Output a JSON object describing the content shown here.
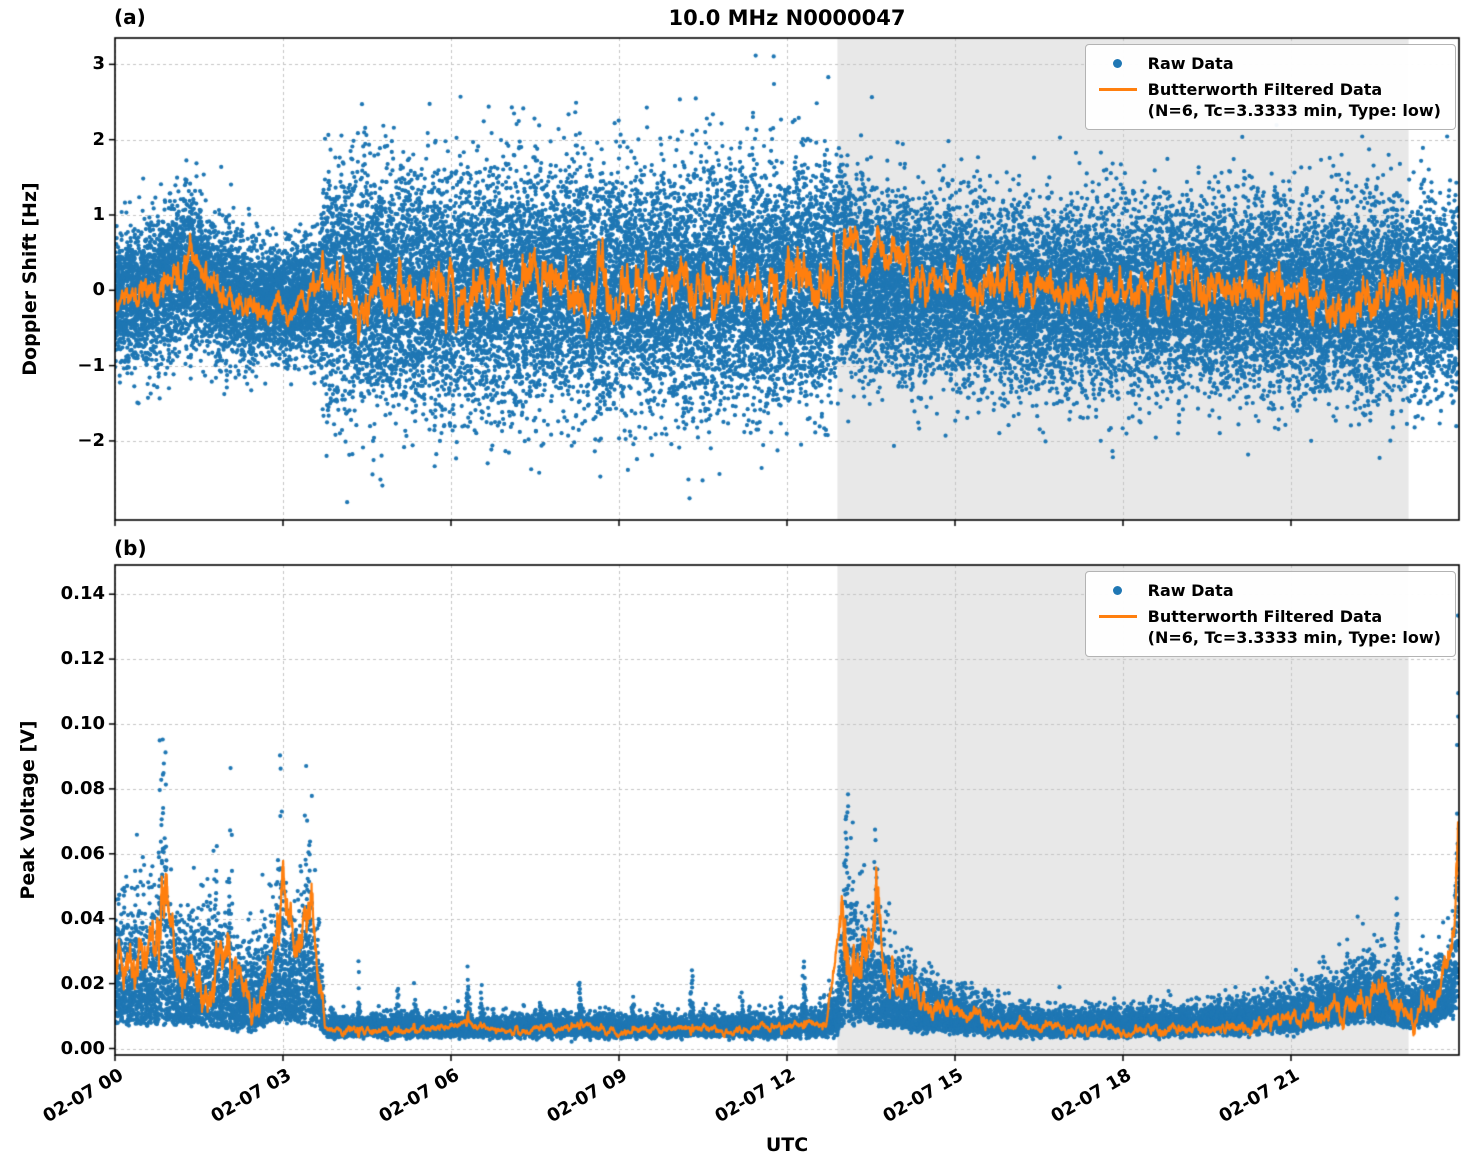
{
  "figure": {
    "title": "10.0 MHz N0000047",
    "xlabel": "UTC",
    "panel_a_label": "(a)",
    "panel_b_label": "(b)",
    "colors": {
      "raw": "#1f77b4",
      "filtered": "#ff7f0e",
      "shade": "rgba(128,128,128,0.18)",
      "grid": "#c4c4c4",
      "axis": "#000000"
    },
    "legend": {
      "raw_label": "Raw Data",
      "filtered_label_line1": "Butterworth Filtered Data",
      "filtered_label_line2": "(N=6, Tc=3.3333 min, Type: low)"
    }
  },
  "chart_data": [
    {
      "panel": "a",
      "type": "scatter",
      "ylabel": "Doppler Shift [Hz]",
      "ylim": [
        -3.05,
        3.35
      ],
      "yticks": [
        3,
        2,
        1,
        0,
        -1,
        -2
      ],
      "ytick_decimals": 0,
      "x_unit": "hours since 02-07 00:00 UTC",
      "xlim": [
        0,
        24
      ],
      "xticks": [
        {
          "hour": 0,
          "label": "02-07 00"
        },
        {
          "hour": 3,
          "label": "02-07 03"
        },
        {
          "hour": 6,
          "label": "02-07 06"
        },
        {
          "hour": 9,
          "label": "02-07 09"
        },
        {
          "hour": 12,
          "label": "02-07 12"
        },
        {
          "hour": 15,
          "label": "02-07 15"
        },
        {
          "hour": 18,
          "label": "02-07 18"
        },
        {
          "hour": 21,
          "label": "02-07 21"
        }
      ],
      "show_x_tick_labels": false,
      "shaded_region": [
        12.9,
        23.1
      ],
      "series": [
        {
          "name": "Raw Data",
          "kind": "scatter",
          "distribution": "gaussian",
          "points_per_hour": 1400,
          "seed": 20240207,
          "envelope_t_mean_sigma": [
            [
              0,
              -0.1,
              0.42
            ],
            [
              0.7,
              0,
              0.48
            ],
            [
              1.35,
              0.3,
              0.5
            ],
            [
              1.7,
              0.1,
              0.45
            ],
            [
              2.1,
              -0.1,
              0.42
            ],
            [
              2.6,
              -0.15,
              0.35
            ],
            [
              3.2,
              -0.1,
              0.38
            ],
            [
              3.65,
              -0.05,
              0.4
            ],
            [
              3.75,
              0,
              0.78
            ],
            [
              8,
              0,
              0.77
            ],
            [
              12.6,
              0.05,
              0.78
            ],
            [
              13.0,
              0.35,
              0.62
            ],
            [
              13.3,
              0.15,
              0.6
            ],
            [
              14,
              0,
              0.6
            ],
            [
              15,
              -0.05,
              0.58
            ],
            [
              17,
              -0.1,
              0.6
            ],
            [
              19,
              -0.05,
              0.6
            ],
            [
              21,
              -0.1,
              0.62
            ],
            [
              23,
              -0.1,
              0.63
            ],
            [
              24,
              -0.05,
              0.6
            ]
          ]
        },
        {
          "name": "Butterworth Filtered Data (N=6, Tc=3.3333 min, Type: low)",
          "kind": "line",
          "seed": 91,
          "wiggle_factor": 0.25,
          "control_points": [
            [
              0,
              -0.15
            ],
            [
              0.4,
              -0.05
            ],
            [
              0.9,
              0.1
            ],
            [
              1.35,
              0.5
            ],
            [
              1.6,
              0.2
            ],
            [
              2.0,
              -0.1
            ],
            [
              2.4,
              -0.25
            ],
            [
              2.9,
              -0.3
            ],
            [
              3.3,
              -0.1
            ],
            [
              3.7,
              0
            ],
            [
              5,
              -0.05
            ],
            [
              7,
              0.05
            ],
            [
              9,
              -0.05
            ],
            [
              11,
              0
            ],
            [
              12.5,
              0.1
            ],
            [
              12.95,
              0.15
            ],
            [
              13.05,
              0.88
            ],
            [
              13.25,
              0.45
            ],
            [
              13.5,
              0.35
            ],
            [
              13.75,
              0.6
            ],
            [
              13.95,
              0.5
            ],
            [
              14.2,
              0.25
            ],
            [
              14.6,
              0.15
            ],
            [
              15,
              0.1
            ],
            [
              16,
              0.05
            ],
            [
              17,
              0
            ],
            [
              18,
              -0.05
            ],
            [
              19,
              0
            ],
            [
              20,
              -0.05
            ],
            [
              21,
              0
            ],
            [
              22,
              -0.1
            ],
            [
              23,
              -0.05
            ],
            [
              24,
              -0.1
            ]
          ]
        }
      ]
    },
    {
      "panel": "b",
      "type": "scatter",
      "ylabel": "Peak Voltage [V]",
      "ylim": [
        -0.002,
        0.149
      ],
      "yticks": [
        0.14,
        0.12,
        0.1,
        0.08,
        0.06,
        0.04,
        0.02,
        0
      ],
      "ytick_decimals": 2,
      "x_unit": "hours since 02-07 00:00 UTC",
      "xlim": [
        0,
        24
      ],
      "xticks": [
        {
          "hour": 0,
          "label": "02-07 00"
        },
        {
          "hour": 3,
          "label": "02-07 03"
        },
        {
          "hour": 6,
          "label": "02-07 06"
        },
        {
          "hour": 9,
          "label": "02-07 09"
        },
        {
          "hour": 12,
          "label": "02-07 12"
        },
        {
          "hour": 15,
          "label": "02-07 15"
        },
        {
          "hour": 18,
          "label": "02-07 18"
        },
        {
          "hour": 21,
          "label": "02-07 21"
        }
      ],
      "show_x_tick_labels": true,
      "shaded_region": [
        12.9,
        23.1
      ],
      "series": [
        {
          "name": "Raw Data",
          "kind": "scatter",
          "distribution": "half-normal",
          "points_per_hour": 900,
          "seed": 777,
          "envelope_t_base_sigma": [
            [
              0,
              0.008,
              0.016
            ],
            [
              0.6,
              0.008,
              0.018
            ],
            [
              1.2,
              0.008,
              0.016
            ],
            [
              2.4,
              0.006,
              0.012
            ],
            [
              3.0,
              0.009,
              0.016
            ],
            [
              3.6,
              0.008,
              0.016
            ],
            [
              3.75,
              0.0045,
              0.0025
            ],
            [
              12.5,
              0.0045,
              0.0025
            ],
            [
              12.9,
              0.005,
              0.006
            ],
            [
              13.05,
              0.008,
              0.02
            ],
            [
              13.4,
              0.008,
              0.016
            ],
            [
              13.8,
              0.007,
              0.012
            ],
            [
              14.3,
              0.006,
              0.009
            ],
            [
              15,
              0.0055,
              0.006
            ],
            [
              15.7,
              0.005,
              0.004
            ],
            [
              16.5,
              0.0045,
              0.0035
            ],
            [
              18,
              0.0045,
              0.0035
            ],
            [
              19.5,
              0.005,
              0.004
            ],
            [
              20.5,
              0.0055,
              0.005
            ],
            [
              21.2,
              0.006,
              0.006
            ],
            [
              21.8,
              0.008,
              0.008
            ],
            [
              22.4,
              0.009,
              0.009
            ],
            [
              23,
              0.007,
              0.007
            ],
            [
              23.5,
              0.008,
              0.008
            ],
            [
              23.9,
              0.01,
              0.012
            ],
            [
              24,
              0.015,
              0.03
            ]
          ],
          "spike_events_t_sigma_width": [
            [
              0.85,
              0.022,
              0.06
            ],
            [
              1.8,
              0.008,
              0.05
            ],
            [
              2.05,
              0.012,
              0.04
            ],
            [
              2.95,
              0.01,
              0.06
            ],
            [
              3.45,
              0.012,
              0.06
            ],
            [
              4.35,
              0.005,
              0.02
            ],
            [
              5.05,
              0.004,
              0.02
            ],
            [
              5.35,
              0.004,
              0.02
            ],
            [
              6.3,
              0.007,
              0.025
            ],
            [
              6.55,
              0.004,
              0.02
            ],
            [
              7.6,
              0.003,
              0.02
            ],
            [
              8.3,
              0.006,
              0.025
            ],
            [
              9.25,
              0.004,
              0.02
            ],
            [
              10.3,
              0.007,
              0.025
            ],
            [
              11.2,
              0.003,
              0.02
            ],
            [
              11.9,
              0.004,
              0.02
            ],
            [
              12.3,
              0.008,
              0.035
            ],
            [
              13.05,
              0.015,
              0.05
            ],
            [
              13.6,
              0.012,
              0.05
            ],
            [
              22.9,
              0.012,
              0.025
            ],
            [
              23.97,
              0.02,
              0.02
            ]
          ]
        },
        {
          "name": "Butterworth Filtered Data (N=6, Tc=3.3333 min, Type: low)",
          "kind": "line",
          "seed": 92,
          "wiggle_factor": 0.25,
          "min_value": 0.0035,
          "control_points": [
            [
              0,
              0.025
            ],
            [
              0.3,
              0.02
            ],
            [
              0.55,
              0.03
            ],
            [
              0.8,
              0.035
            ],
            [
              0.9,
              0.063
            ],
            [
              1.0,
              0.035
            ],
            [
              1.2,
              0.02
            ],
            [
              1.5,
              0.015
            ],
            [
              1.8,
              0.025
            ],
            [
              2.0,
              0.03
            ],
            [
              2.2,
              0.02
            ],
            [
              2.5,
              0.012
            ],
            [
              2.8,
              0.025
            ],
            [
              3.0,
              0.045
            ],
            [
              3.2,
              0.03
            ],
            [
              3.45,
              0.045
            ],
            [
              3.6,
              0.03
            ],
            [
              3.75,
              0.006
            ],
            [
              5,
              0.005
            ],
            [
              6.3,
              0.008
            ],
            [
              7,
              0.005
            ],
            [
              8.3,
              0.007
            ],
            [
              9,
              0.005
            ],
            [
              10.3,
              0.007
            ],
            [
              11,
              0.005
            ],
            [
              12.3,
              0.008
            ],
            [
              12.7,
              0.007
            ],
            [
              13.0,
              0.045
            ],
            [
              13.15,
              0.02
            ],
            [
              13.4,
              0.03
            ],
            [
              13.6,
              0.045
            ],
            [
              13.8,
              0.02
            ],
            [
              14.2,
              0.018
            ],
            [
              14.6,
              0.012
            ],
            [
              15,
              0.012
            ],
            [
              15.5,
              0.009
            ],
            [
              16,
              0.007
            ],
            [
              17,
              0.006
            ],
            [
              18,
              0.005
            ],
            [
              19,
              0.006
            ],
            [
              20,
              0.006
            ],
            [
              20.7,
              0.008
            ],
            [
              21.3,
              0.01
            ],
            [
              21.8,
              0.012
            ],
            [
              22.3,
              0.014
            ],
            [
              22.6,
              0.02
            ],
            [
              22.9,
              0.013
            ],
            [
              23.2,
              0.01
            ],
            [
              23.6,
              0.015
            ],
            [
              23.95,
              0.04
            ],
            [
              24,
              0.055
            ]
          ]
        }
      ]
    }
  ]
}
